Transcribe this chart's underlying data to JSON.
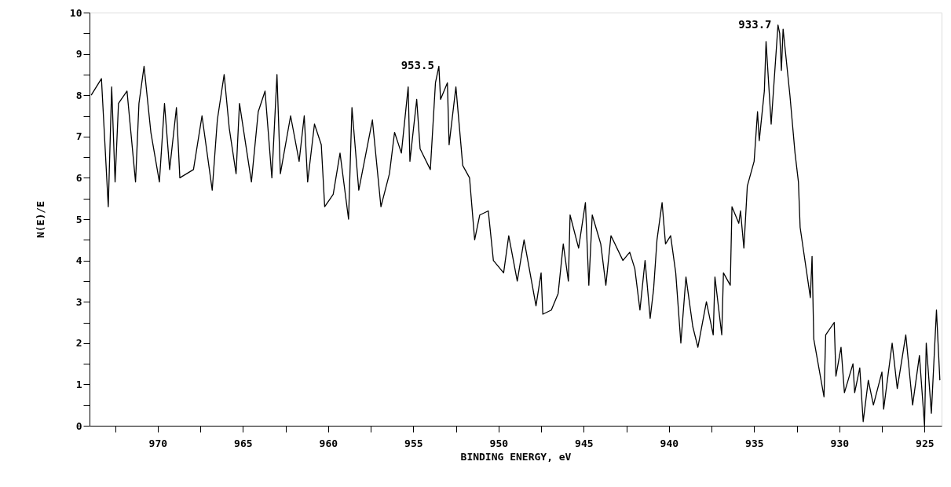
{
  "chart_data": {
    "type": "line",
    "xlabel": "BINDING ENERGY, eV",
    "ylabel": "N(E)/E",
    "xlim": [
      974,
      924
    ],
    "xticks": [
      {
        "value": 972.5,
        "label": null
      },
      970,
      {
        "value": 967.5,
        "label": null
      },
      965,
      {
        "value": 962.5,
        "label": null
      },
      960,
      {
        "value": 957.5,
        "label": null
      },
      955,
      {
        "value": 952.5,
        "label": null
      },
      950,
      {
        "value": 947.5,
        "label": null
      },
      945,
      {
        "value": 942.5,
        "label": null
      },
      940,
      {
        "value": 937.5,
        "label": null
      },
      935,
      {
        "value": 932.5,
        "label": null
      },
      930,
      {
        "value": 927.5,
        "label": null
      },
      925
    ],
    "ylim": [
      0,
      10
    ],
    "yticks": [
      0,
      {
        "value": 0.5,
        "label": null
      },
      1,
      {
        "value": 1.5,
        "label": null
      },
      2,
      {
        "value": 2.5,
        "label": null
      },
      3,
      {
        "value": 3.5,
        "label": null
      },
      4,
      {
        "value": 4.5,
        "label": null
      },
      5,
      {
        "value": 5.5,
        "label": null
      },
      6,
      {
        "value": 6.5,
        "label": null
      },
      7,
      {
        "value": 7.5,
        "label": null
      },
      8,
      {
        "value": 8.5,
        "label": null
      },
      9,
      {
        "value": 9.5,
        "label": null
      },
      10
    ],
    "grid": false,
    "marker": "none",
    "annotations": [
      {
        "text": "953.5",
        "x": 953.5,
        "y": 8.7
      },
      {
        "text": "933.7",
        "x": 933.7,
        "y": 9.7
      }
    ],
    "series": [
      {
        "color": "#000000",
        "x": [
          973.9,
          973.3,
          972.9,
          972.7,
          972.5,
          972.3,
          971.8,
          971.3,
          971.1,
          970.8,
          970.4,
          969.9,
          969.6,
          969.3,
          968.9,
          968.7,
          967.9,
          967.4,
          966.8,
          966.5,
          966.1,
          965.8,
          965.4,
          965.2,
          964.5,
          964.1,
          963.7,
          963.3,
          963.0,
          962.8,
          962.2,
          961.7,
          961.4,
          961.2,
          960.8,
          960.4,
          960.2,
          959.7,
          959.3,
          958.8,
          958.6,
          958.2,
          957.4,
          956.9,
          956.4,
          956.1,
          955.7,
          955.3,
          955.2,
          954.8,
          954.6,
          954.0,
          953.7,
          953.5,
          953.4,
          953.0,
          952.9,
          952.5,
          952.1,
          951.7,
          951.4,
          951.1,
          950.6,
          950.3,
          949.7,
          949.4,
          948.9,
          948.5,
          947.8,
          947.5,
          947.4,
          946.9,
          946.5,
          946.2,
          945.9,
          945.8,
          945.3,
          944.9,
          944.7,
          944.5,
          944.0,
          943.7,
          943.4,
          942.7,
          942.3,
          942.0,
          941.7,
          941.4,
          941.1,
          940.9,
          940.7,
          940.4,
          940.2,
          939.9,
          939.6,
          939.3,
          939.0,
          938.6,
          938.3,
          937.8,
          937.4,
          937.3,
          936.9,
          936.8,
          936.4,
          936.3,
          935.9,
          935.8,
          935.6,
          935.4,
          935.0,
          934.8,
          934.7,
          934.4,
          934.3,
          934.0,
          933.6,
          933.5,
          933.4,
          933.3,
          932.9,
          932.6,
          932.4,
          932.3,
          931.7,
          931.6,
          931.5,
          930.9,
          930.8,
          930.3,
          930.2,
          929.9,
          929.7,
          929.2,
          929.1,
          928.8,
          928.6,
          928.3,
          928.0,
          927.5,
          927.4,
          926.9,
          926.6,
          926.1,
          925.7,
          925.3,
          925.0,
          924.9,
          924.6,
          924.3,
          924.1
        ],
        "values": [
          8.0,
          8.4,
          5.3,
          8.2,
          5.9,
          7.8,
          8.1,
          5.9,
          7.8,
          8.7,
          7.1,
          5.9,
          7.8,
          6.2,
          7.7,
          6.0,
          6.2,
          7.5,
          5.7,
          7.4,
          8.5,
          7.2,
          6.1,
          7.8,
          5.9,
          7.6,
          8.1,
          6.0,
          8.5,
          6.1,
          7.5,
          6.4,
          7.5,
          5.9,
          7.3,
          6.8,
          5.3,
          5.6,
          6.6,
          5.0,
          7.7,
          5.7,
          7.4,
          5.3,
          6.1,
          7.1,
          6.6,
          8.2,
          6.4,
          7.9,
          6.7,
          6.2,
          8.3,
          8.7,
          7.9,
          8.3,
          6.8,
          8.2,
          6.3,
          6.0,
          4.5,
          5.1,
          5.2,
          4.0,
          3.7,
          4.6,
          3.5,
          4.5,
          2.9,
          3.7,
          2.7,
          2.8,
          3.2,
          4.4,
          3.5,
          5.1,
          4.3,
          5.4,
          3.4,
          5.1,
          4.4,
          3.4,
          4.6,
          4.0,
          4.2,
          3.8,
          2.8,
          4.0,
          2.6,
          3.3,
          4.5,
          5.4,
          4.4,
          4.6,
          3.7,
          2.0,
          3.6,
          2.4,
          1.9,
          3.0,
          2.2,
          3.6,
          2.2,
          3.7,
          3.4,
          5.3,
          4.9,
          5.2,
          4.3,
          5.8,
          6.4,
          7.6,
          6.9,
          8.1,
          9.3,
          7.3,
          9.7,
          9.5,
          8.6,
          9.6,
          8.0,
          6.6,
          5.9,
          4.8,
          3.1,
          4.1,
          2.1,
          0.7,
          2.2,
          2.5,
          1.2,
          1.9,
          0.8,
          1.5,
          0.8,
          1.4,
          0.1,
          1.1,
          0.5,
          1.3,
          0.4,
          2.0,
          0.9,
          2.2,
          0.5,
          1.7,
          0.0,
          2.0,
          0.3,
          2.8,
          1.1
        ]
      }
    ]
  }
}
